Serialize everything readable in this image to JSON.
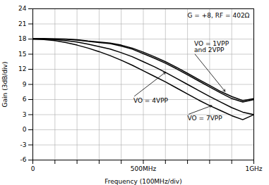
{
  "chart_data": {
    "type": "line",
    "xlabel": "Frequency (100MHz/div)",
    "ylabel": "Gain (3dB/div)",
    "x": [
      0,
      50000000,
      100000000,
      150000000,
      200000000,
      250000000,
      300000000,
      350000000,
      400000000,
      450000000,
      500000000,
      550000000,
      600000000,
      650000000,
      700000000,
      750000000,
      800000000,
      850000000,
      900000000,
      950000000,
      1000000000
    ],
    "series": [
      {
        "color": "#000000",
        "values": [
          18.1,
          18.1,
          18.05,
          18.0,
          17.85,
          17.6,
          17.4,
          17.2,
          16.8,
          16.2,
          15.4,
          14.5,
          13.5,
          12.4,
          11.2,
          10.0,
          8.8,
          7.6,
          6.6,
          5.8,
          6.2
        ]
      },
      {
        "color": "#000000",
        "values": [
          18.0,
          18.0,
          18.0,
          17.95,
          17.8,
          17.55,
          17.3,
          17.1,
          16.6,
          16.0,
          15.1,
          14.2,
          13.2,
          12.1,
          10.9,
          9.7,
          8.5,
          7.3,
          6.2,
          5.5,
          6.0
        ]
      },
      {
        "color": "#000000",
        "values": [
          18.0,
          18.0,
          17.9,
          17.7,
          17.4,
          17.0,
          16.5,
          16.0,
          15.3,
          14.5,
          13.5,
          12.5,
          11.4,
          10.2,
          9.0,
          7.8,
          6.6,
          5.5,
          4.4,
          3.5,
          3.0
        ]
      },
      {
        "color": "#000000",
        "values": [
          18.0,
          17.9,
          17.7,
          17.3,
          16.8,
          16.2,
          15.5,
          14.7,
          13.8,
          12.8,
          11.7,
          10.6,
          9.5,
          8.3,
          7.1,
          5.9,
          4.8,
          3.8,
          2.8,
          2.0,
          3.0
        ]
      }
    ],
    "xlim": [
      0,
      1000000000
    ],
    "ylim": [
      -6,
      24
    ],
    "xticks": [
      0,
      {
        "value": 100000000,
        "label": null
      },
      {
        "value": 200000000,
        "label": null
      },
      {
        "value": 300000000,
        "label": null
      },
      {
        "value": 400000000,
        "label": null
      },
      {
        "value": 500000000,
        "label": "500MHz"
      },
      {
        "value": 600000000,
        "label": null
      },
      {
        "value": 700000000,
        "label": null
      },
      {
        "value": 800000000,
        "label": null
      },
      {
        "value": 900000000,
        "label": null
      },
      {
        "value": 1000000000,
        "label": "1GHz"
      }
    ],
    "yticks": [
      -6,
      -3,
      0,
      3,
      6,
      9,
      12,
      15,
      18,
      21,
      24
    ],
    "grid": true,
    "annotations": [
      {
        "text": "G = +8, RF = 402Ω"
      },
      {
        "text": "VO = 1VPP\nand 2VPP",
        "x": 730000000,
        "y": 15.2,
        "arrow_x": 870000000,
        "arrow_y": 7.6
      },
      {
        "text": "VO = 4VPP",
        "x": 455000000,
        "y": 6.5,
        "arrow_x": 600000000,
        "arrow_y": 11.4
      },
      {
        "text": "VO = 7VPP",
        "x": 700000000,
        "y": 3.0,
        "arrow_x": 810000000,
        "arrow_y": 4.8
      }
    ]
  }
}
